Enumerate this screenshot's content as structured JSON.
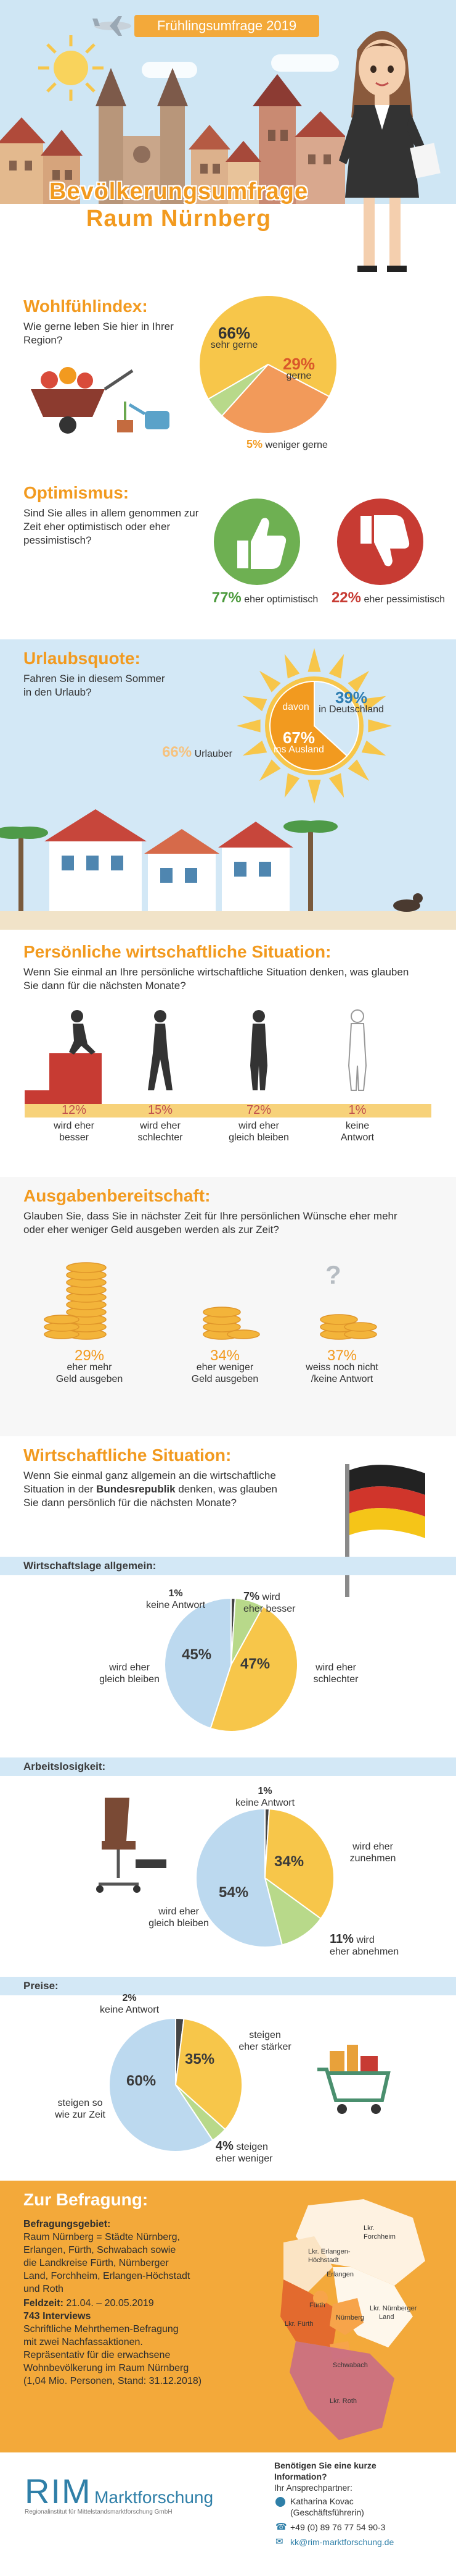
{
  "header": {
    "banner": "Frühlingsumfrage 2019",
    "title_line1": "Bevölkerungsumfrage",
    "title_line2": "Raum Nürnberg"
  },
  "wohlfuehl": {
    "title": "Wohlfühlindex:",
    "question": "Wie gerne leben Sie hier in Ihrer Region?",
    "chart_data": {
      "type": "pie",
      "categories": [
        "sehr gerne",
        "gerne",
        "weniger gerne"
      ],
      "values": [
        66,
        29,
        5
      ],
      "labels": [
        "66%",
        "29%",
        "5%"
      ]
    }
  },
  "optimismus": {
    "title": "Optimismus:",
    "question": "Sind Sie alles in allem genommen zur Zeit eher optimistisch oder eher pessimistisch?",
    "opt_pct": "77%",
    "opt_label": "eher optimistisch",
    "pes_pct": "22%",
    "pes_label": "eher pessimistisch"
  },
  "urlaub": {
    "title": "Urlaubsquote:",
    "question": "Fahren Sie in diesem Sommer in den Urlaub?",
    "urlauber_pct": "66%",
    "urlauber_label": "Urlauber",
    "davon": "davon",
    "chart_data": {
      "type": "pie",
      "categories": [
        "in Deutschland",
        "ins Ausland"
      ],
      "values": [
        39,
        67
      ],
      "labels": [
        "39%",
        "67%"
      ]
    }
  },
  "persoenlich": {
    "title": "Persönliche wirtschaftliche Situation:",
    "question": "Wenn Sie einmal an Ihre persönliche wirtschaftliche Situation denken, was glauben Sie dann für die nächsten Monate?",
    "items": [
      {
        "pct": "12%",
        "l1": "wird eher",
        "l2": "besser"
      },
      {
        "pct": "15%",
        "l1": "wird eher",
        "l2": "schlechter"
      },
      {
        "pct": "72%",
        "l1": "wird eher",
        "l2": "gleich bleiben"
      },
      {
        "pct": "1%",
        "l1": "keine",
        "l2": "Antwort"
      }
    ]
  },
  "ausgaben": {
    "title": "Ausgabenbereitschaft:",
    "question": "Glauben Sie, dass Sie in nächster Zeit für Ihre persönlichen Wünsche eher mehr oder eher weniger Geld ausgeben werden als zur Zeit?",
    "items": [
      {
        "pct": "29%",
        "l1": "eher mehr",
        "l2": "Geld ausgeben"
      },
      {
        "pct": "34%",
        "l1": "eher weniger",
        "l2": "Geld ausgeben"
      },
      {
        "pct": "37%",
        "l1": "weiss noch nicht",
        "l2": "/keine Antwort"
      }
    ],
    "question_mark": "?"
  },
  "wirtschaft": {
    "title": "Wirtschaftliche Situation:",
    "q1": "Wenn Sie einmal ganz allgemein an die wirtschaftliche",
    "q2a": "Situation in der ",
    "q2b": "Bundesrepublik",
    "q2c": " denken, was glauben",
    "q3": "Sie dann persönlich für die nächsten Monate?",
    "lage": {
      "heading": "Wirtschaftslage allgemein:",
      "chart_data": {
        "type": "pie",
        "categories": [
          "keine Antwort",
          "wird eher besser",
          "wird eher schlechter",
          "wird eher gleich bleiben"
        ],
        "values": [
          1,
          7,
          47,
          45
        ],
        "labels": [
          "1%",
          "7%",
          "47%",
          "45%"
        ]
      },
      "l_keine": "keine Antwort",
      "l_besser1": "wird",
      "l_besser2": "eher besser",
      "l_schlechter1": "wird eher",
      "l_schlechter2": "schlechter",
      "l_gleich1": "wird eher",
      "l_gleich2": "gleich bleiben"
    },
    "arbeit": {
      "heading": "Arbeitslosigkeit:",
      "chart_data": {
        "type": "pie",
        "categories": [
          "keine Antwort",
          "wird eher zunehmen",
          "wird eher abnehmen",
          "wird eher gleich bleiben"
        ],
        "values": [
          1,
          34,
          11,
          54
        ],
        "labels": [
          "1%",
          "34%",
          "11%",
          "54%"
        ]
      },
      "l_keine": "keine Antwort",
      "l_zu1": "wird eher",
      "l_zu2": "zunehmen",
      "l_ab1": "wird",
      "l_ab2": "eher abnehmen",
      "l_gleich1": "wird eher",
      "l_gleich2": "gleich bleiben"
    },
    "preise": {
      "heading": "Preise:",
      "chart_data": {
        "type": "pie",
        "categories": [
          "keine Antwort",
          "steigen eher stärker",
          "steigen eher weniger",
          "steigen so wie zur Zeit"
        ],
        "values": [
          2,
          35,
          4,
          60
        ],
        "labels": [
          "2%",
          "35%",
          "4%",
          "60%"
        ]
      },
      "l_keine": "keine Antwort",
      "l_st1": "steigen",
      "l_st2": "eher stärker",
      "l_we1": "steigen",
      "l_we2": "eher weniger",
      "l_so1": "steigen so",
      "l_so2": "wie zur Zeit"
    }
  },
  "befragung": {
    "title": "Zur Befragung:",
    "gebiet_h": "Befragungsgebiet:",
    "gebiet": [
      "Raum Nürnberg = Städte Nürnberg,",
      "Erlangen, Fürth, Schwabach sowie",
      "die Landkreise Fürth, Nürnberger",
      "Land, Forchheim, Erlangen-Höchstadt",
      "und Roth"
    ],
    "feldzeit_h": "Feldzeit:",
    "feldzeit": " 21.04. – 20.05.2019",
    "interviews_h": "743 Interviews",
    "methode": [
      "Schriftliche Mehrthemen-Befragung",
      "mit zwei Nachfassaktionen.",
      "Repräsentativ für die erwachsene",
      "Wohnbevölkerung im Raum Nürnberg",
      "(1,04 Mio. Personen, Stand: 31.12.2018)"
    ],
    "map": {
      "erlangen": "Lkr. Erlangen-",
      "hoechstadt": "Höchstadt",
      "forchheim1": "Lkr.",
      "forchheim2": "Forchheim",
      "erlangen_city": "Erlangen",
      "fuerth_city": "Fürth",
      "nuernberg_city": "Nürnberg",
      "lkr_fuerth": "Lkr. Fürth",
      "lkr_nbg1": "Lkr. Nürnberger",
      "lkr_nbg2": "Land",
      "schwabach": "Schwabach",
      "roth": "Lkr. Roth"
    }
  },
  "footer": {
    "logo_rim": "RIM",
    "logo_markt": "Marktforschung",
    "logo_sub": "Regionalinstitut für Mittelstandsmarktforschung GmbH",
    "contact_h1": "Benötigen Sie eine kurze",
    "contact_h2": "Information?",
    "contact_sub": "Ihr Ansprechpartner:",
    "name": "Katharina Kovac",
    "role": "(Geschäftsführerin)",
    "phone": "+49 (0) 89 76 77 54 90-3",
    "email": "kk@rim-marktforschung.de"
  }
}
